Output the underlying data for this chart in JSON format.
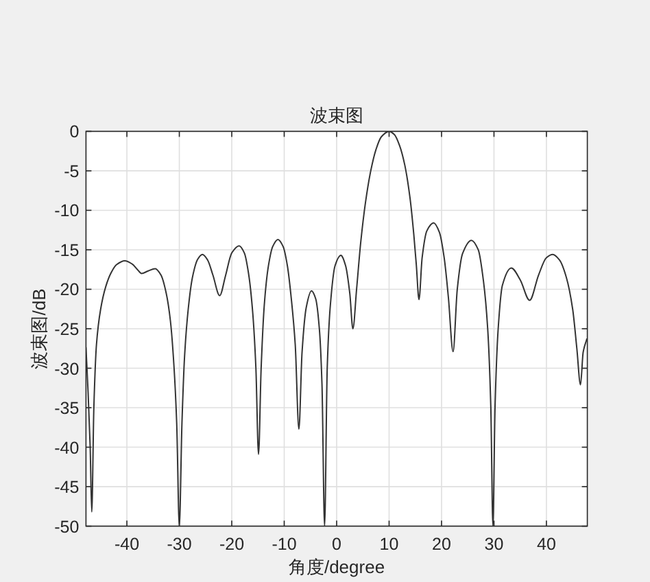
{
  "chart_data": {
    "type": "line",
    "title": "波束图",
    "xlabel": "角度/degree",
    "ylabel": "波束图/dB",
    "x": [
      -47.8,
      -47.4,
      -47.0,
      -46.7,
      -46.3,
      -45.8,
      -45.0,
      -44.0,
      -43.0,
      -42.0,
      -40.4,
      -39.0,
      -38.0,
      -37.2,
      -36.0,
      -34.6,
      -33.5,
      -32.5,
      -31.7,
      -31.0,
      -30.5,
      -30.0,
      -29.5,
      -29.0,
      -28.3,
      -27.5,
      -26.5,
      -25.6,
      -24.6,
      -23.6,
      -22.3,
      -21.2,
      -20.0,
      -18.6,
      -17.6,
      -16.8,
      -16.0,
      -15.4,
      -14.9,
      -14.4,
      -13.8,
      -13.0,
      -12.2,
      -11.2,
      -10.2,
      -9.4,
      -8.6,
      -7.9,
      -7.2,
      -6.6,
      -5.8,
      -4.8,
      -4.0,
      -3.3,
      -2.8,
      -2.3,
      -1.8,
      -1.2,
      -0.3,
      0.8,
      1.7,
      2.5,
      3.1,
      3.8,
      4.6,
      5.5,
      6.5,
      7.5,
      8.5,
      10,
      11.0,
      12.0,
      13.0,
      14.0,
      14.7,
      15.2,
      15.7,
      16.3,
      17.2,
      18.5,
      19.6,
      20.5,
      21.3,
      22.2,
      23.0,
      24.0,
      25.7,
      27.0,
      28.0,
      28.8,
      29.4,
      29.8,
      30.2,
      30.8,
      31.6,
      33.3,
      35.0,
      36.8,
      38.5,
      40.0,
      41.2,
      42.5,
      43.8,
      45.0,
      45.8,
      46.5,
      47.0,
      47.7
    ],
    "series": [
      {
        "color": "#333333",
        "values": [
          -27.4,
          -33,
          -40,
          -48.2,
          -35,
          -27,
          -22.5,
          -19.6,
          -17.9,
          -16.9,
          -16.4,
          -16.8,
          -17.5,
          -18.0,
          -17.7,
          -17.4,
          -18.2,
          -20.5,
          -24,
          -30,
          -37,
          -50,
          -37,
          -28.5,
          -22.5,
          -18.5,
          -16.2,
          -15.6,
          -16.3,
          -18.2,
          -20.8,
          -18.3,
          -15.4,
          -14.5,
          -15.4,
          -18,
          -23,
          -30,
          -40.9,
          -30,
          -22,
          -17,
          -14.6,
          -13.7,
          -14.6,
          -17,
          -21.5,
          -27,
          -37.7,
          -28,
          -22.3,
          -20.2,
          -21.2,
          -25,
          -32,
          -50,
          -30,
          -22,
          -17,
          -15.7,
          -17,
          -20.5,
          -25.0,
          -20,
          -14,
          -9,
          -5,
          -2.3,
          -0.7,
          0,
          -0.4,
          -1.8,
          -4.3,
          -8.5,
          -13,
          -17,
          -21.3,
          -16,
          -12.6,
          -11.6,
          -12.8,
          -16,
          -21,
          -27.9,
          -20,
          -15.5,
          -13.8,
          -15,
          -19,
          -25,
          -35,
          -50,
          -35,
          -25,
          -19.5,
          -17.3,
          -18.8,
          -21.4,
          -18.2,
          -16.0,
          -15.6,
          -16.3,
          -18.5,
          -22.5,
          -27.5,
          -32.1,
          -28,
          -26.3
        ]
      }
    ],
    "xlim": [
      -47.8,
      47.8
    ],
    "ylim": [
      -50,
      0
    ],
    "xticks": [
      -40,
      -30,
      -20,
      -10,
      0,
      10,
      20,
      30,
      40
    ],
    "yticks": [
      -50,
      -45,
      -40,
      -35,
      -30,
      -25,
      -20,
      -15,
      -10,
      -5,
      0
    ],
    "grid": true
  }
}
